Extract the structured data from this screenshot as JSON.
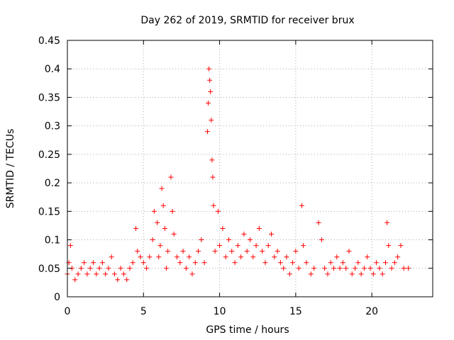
{
  "chart_data": {
    "type": "scatter",
    "title": "Day 262 of 2019, SRMTID for receiver brux",
    "xlabel": "GPS time / hours",
    "ylabel": "SRMTID / TECUs",
    "xlim": [
      0,
      24
    ],
    "ylim": [
      0,
      0.45
    ],
    "xticks": [
      0,
      5,
      10,
      15,
      20
    ],
    "yticks": [
      0,
      0.05,
      0.1,
      0.15,
      0.2,
      0.25,
      0.3,
      0.35,
      0.4,
      0.45
    ],
    "grid": true,
    "marker": "+",
    "color": "#ff0000",
    "series": [
      {
        "name": "SRMTID",
        "points": [
          [
            0.0,
            0.04
          ],
          [
            0.1,
            0.06
          ],
          [
            0.2,
            0.09
          ],
          [
            0.3,
            0.05
          ],
          [
            0.5,
            0.03
          ],
          [
            0.7,
            0.04
          ],
          [
            0.9,
            0.05
          ],
          [
            1.1,
            0.06
          ],
          [
            1.3,
            0.04
          ],
          [
            1.5,
            0.05
          ],
          [
            1.7,
            0.06
          ],
          [
            1.9,
            0.04
          ],
          [
            2.1,
            0.05
          ],
          [
            2.3,
            0.06
          ],
          [
            2.5,
            0.04
          ],
          [
            2.7,
            0.05
          ],
          [
            2.9,
            0.07
          ],
          [
            3.1,
            0.04
          ],
          [
            3.3,
            0.03
          ],
          [
            3.5,
            0.05
          ],
          [
            3.7,
            0.04
          ],
          [
            3.9,
            0.03
          ],
          [
            4.1,
            0.05
          ],
          [
            4.3,
            0.06
          ],
          [
            4.5,
            0.12
          ],
          [
            4.6,
            0.08
          ],
          [
            4.8,
            0.07
          ],
          [
            5.0,
            0.06
          ],
          [
            5.2,
            0.05
          ],
          [
            5.4,
            0.07
          ],
          [
            5.6,
            0.1
          ],
          [
            5.7,
            0.15
          ],
          [
            5.9,
            0.13
          ],
          [
            6.0,
            0.07
          ],
          [
            6.1,
            0.09
          ],
          [
            6.2,
            0.19
          ],
          [
            6.3,
            0.16
          ],
          [
            6.4,
            0.12
          ],
          [
            6.5,
            0.05
          ],
          [
            6.6,
            0.08
          ],
          [
            6.8,
            0.21
          ],
          [
            6.9,
            0.15
          ],
          [
            7.0,
            0.11
          ],
          [
            7.2,
            0.07
          ],
          [
            7.4,
            0.06
          ],
          [
            7.6,
            0.08
          ],
          [
            7.8,
            0.05
          ],
          [
            8.0,
            0.07
          ],
          [
            8.2,
            0.04
          ],
          [
            8.4,
            0.06
          ],
          [
            8.6,
            0.08
          ],
          [
            8.8,
            0.1
          ],
          [
            9.0,
            0.06
          ],
          [
            9.2,
            0.29
          ],
          [
            9.25,
            0.34
          ],
          [
            9.3,
            0.4
          ],
          [
            9.35,
            0.38
          ],
          [
            9.4,
            0.36
          ],
          [
            9.45,
            0.31
          ],
          [
            9.5,
            0.24
          ],
          [
            9.55,
            0.21
          ],
          [
            9.6,
            0.16
          ],
          [
            9.7,
            0.08
          ],
          [
            9.9,
            0.15
          ],
          [
            10.0,
            0.09
          ],
          [
            10.2,
            0.12
          ],
          [
            10.4,
            0.07
          ],
          [
            10.6,
            0.1
          ],
          [
            10.8,
            0.08
          ],
          [
            11.0,
            0.06
          ],
          [
            11.2,
            0.09
          ],
          [
            11.4,
            0.07
          ],
          [
            11.6,
            0.11
          ],
          [
            11.8,
            0.08
          ],
          [
            12.0,
            0.1
          ],
          [
            12.2,
            0.07
          ],
          [
            12.4,
            0.09
          ],
          [
            12.6,
            0.12
          ],
          [
            12.8,
            0.08
          ],
          [
            13.0,
            0.06
          ],
          [
            13.2,
            0.09
          ],
          [
            13.4,
            0.11
          ],
          [
            13.6,
            0.07
          ],
          [
            13.8,
            0.08
          ],
          [
            14.0,
            0.06
          ],
          [
            14.2,
            0.05
          ],
          [
            14.4,
            0.07
          ],
          [
            14.6,
            0.04
          ],
          [
            14.8,
            0.06
          ],
          [
            15.0,
            0.08
          ],
          [
            15.2,
            0.05
          ],
          [
            15.4,
            0.16
          ],
          [
            15.5,
            0.09
          ],
          [
            15.7,
            0.06
          ],
          [
            16.0,
            0.04
          ],
          [
            16.2,
            0.05
          ],
          [
            16.5,
            0.13
          ],
          [
            16.7,
            0.1
          ],
          [
            16.9,
            0.05
          ],
          [
            17.1,
            0.04
          ],
          [
            17.3,
            0.06
          ],
          [
            17.5,
            0.05
          ],
          [
            17.7,
            0.07
          ],
          [
            17.9,
            0.05
          ],
          [
            18.1,
            0.06
          ],
          [
            18.3,
            0.05
          ],
          [
            18.5,
            0.08
          ],
          [
            18.7,
            0.04
          ],
          [
            18.9,
            0.05
          ],
          [
            19.1,
            0.06
          ],
          [
            19.3,
            0.04
          ],
          [
            19.5,
            0.05
          ],
          [
            19.7,
            0.07
          ],
          [
            19.9,
            0.05
          ],
          [
            20.1,
            0.04
          ],
          [
            20.3,
            0.06
          ],
          [
            20.5,
            0.05
          ],
          [
            20.7,
            0.04
          ],
          [
            20.9,
            0.06
          ],
          [
            21.0,
            0.13
          ],
          [
            21.1,
            0.09
          ],
          [
            21.3,
            0.05
          ],
          [
            21.5,
            0.06
          ],
          [
            21.7,
            0.07
          ],
          [
            21.9,
            0.09
          ],
          [
            22.1,
            0.05
          ],
          [
            22.4,
            0.05
          ]
        ]
      }
    ]
  }
}
